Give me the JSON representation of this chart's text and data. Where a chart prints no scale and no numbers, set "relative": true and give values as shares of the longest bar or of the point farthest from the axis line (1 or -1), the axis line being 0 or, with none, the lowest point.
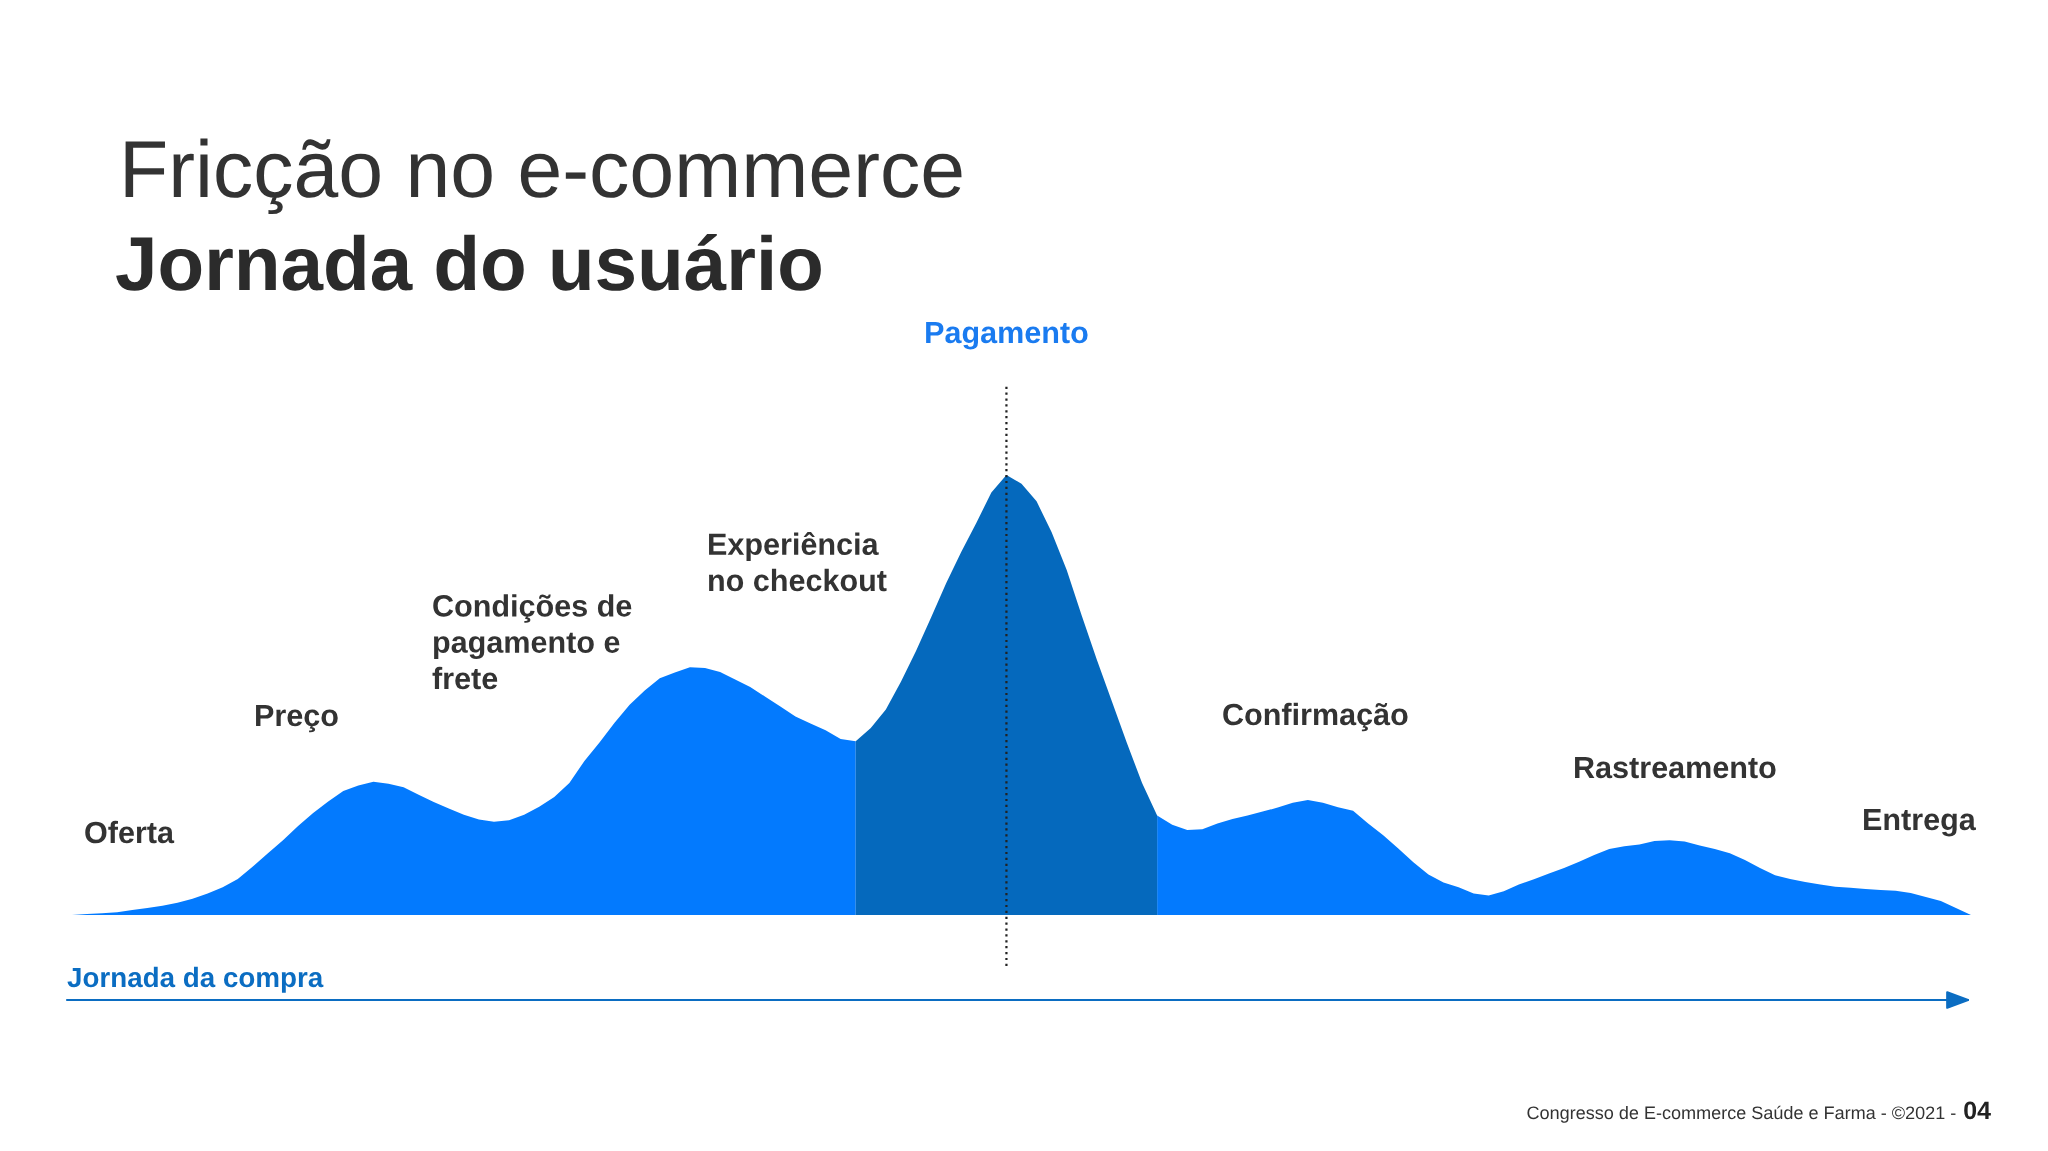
{
  "chart_data": {
    "type": "area",
    "title": "Fricção no e-commerce",
    "subtitle": "Jornada do usuário",
    "xlabel": "Jornada da compra",
    "relative": true,
    "categories": [
      null,
      null,
      null,
      null,
      null,
      null,
      null,
      null,
      null,
      null,
      null,
      null,
      null,
      null,
      null,
      null,
      null,
      null,
      null,
      null,
      null,
      null,
      null,
      null,
      null,
      null,
      null,
      null,
      null,
      null,
      null,
      null,
      null,
      null,
      null,
      null,
      null,
      null,
      null,
      null,
      null,
      null,
      null,
      null,
      null,
      null,
      null,
      null,
      null,
      null,
      null,
      null,
      null,
      null,
      null,
      null,
      null,
      null,
      null,
      null,
      null,
      null,
      null,
      null,
      null,
      null,
      null,
      null,
      null,
      null,
      null,
      null,
      null,
      null,
      null,
      null,
      null,
      null,
      null,
      null,
      null,
      null,
      null,
      null,
      null,
      null,
      null,
      null,
      null,
      null,
      null,
      null,
      null,
      null,
      null,
      null,
      null,
      null,
      null,
      null,
      null,
      null,
      null,
      null,
      null,
      null,
      null,
      null,
      null,
      null,
      null,
      null,
      null,
      null,
      null,
      null,
      null,
      null,
      null,
      null,
      null,
      null,
      null,
      null,
      null,
      null,
      null
    ],
    "series": [
      {
        "color": "#037afe",
        "values": [
          0,
          0.002,
          0.004,
          0.006,
          0.011,
          0.016,
          0.021,
          0.028,
          0.037,
          0.049,
          0.063,
          0.082,
          0.11,
          0.14,
          0.17,
          0.202,
          0.232,
          0.258,
          0.282,
          0.294,
          0.303,
          0.298,
          0.29,
          0.273,
          0.257,
          0.242,
          0.228,
          0.217,
          0.212,
          0.215,
          0.228,
          0.246,
          0.268,
          0.3,
          0.35,
          0.392,
          0.437,
          0.478,
          0.51,
          0.538,
          0.551,
          0.563,
          0.561,
          0.552,
          0.535,
          0.518,
          0.496,
          0.474,
          0.451,
          0.435,
          0.42,
          0.4,
          0.395,
          null,
          null,
          null,
          null,
          null,
          null,
          null,
          null,
          null,
          null,
          null,
          null,
          null,
          null,
          null,
          null,
          null,
          null,
          null,
          0.226,
          0.205,
          0.193,
          0.195,
          0.208,
          0.218,
          0.226,
          0.235,
          0.244,
          0.255,
          0.261,
          0.255,
          0.245,
          0.237,
          0.208,
          0.181,
          0.151,
          0.12,
          0.092,
          0.074,
          0.063,
          0.049,
          0.044,
          0.054,
          0.069,
          0.081,
          0.094,
          0.107,
          0.121,
          0.136,
          0.15,
          0.156,
          0.16,
          0.168,
          0.17,
          0.167,
          0.158,
          0.15,
          0.14,
          0.125,
          0.107,
          0.09,
          0.082,
          0.075,
          0.069,
          0.064,
          0.062,
          0.059,
          0.057,
          0.055,
          0.05,
          0.041,
          0.032,
          0.016,
          0
        ]
      },
      {
        "color": "#0569bd",
        "values": [
          null,
          null,
          null,
          null,
          null,
          null,
          null,
          null,
          null,
          null,
          null,
          null,
          null,
          null,
          null,
          null,
          null,
          null,
          null,
          null,
          null,
          null,
          null,
          null,
          null,
          null,
          null,
          null,
          null,
          null,
          null,
          null,
          null,
          null,
          null,
          null,
          null,
          null,
          null,
          null,
          null,
          null,
          null,
          null,
          null,
          null,
          null,
          null,
          null,
          null,
          null,
          null,
          0.395,
          0.425,
          0.467,
          0.53,
          0.6,
          0.676,
          0.754,
          0.825,
          0.891,
          0.96,
          1.0,
          0.98,
          0.94,
          0.87,
          0.784,
          0.68,
          0.58,
          0.485,
          0.39,
          0.3,
          0.226,
          null,
          null,
          null,
          null,
          null,
          null,
          null,
          null,
          null,
          null,
          null,
          null,
          null,
          null,
          null,
          null,
          null,
          null,
          null,
          null,
          null,
          null,
          null,
          null,
          null,
          null,
          null,
          null,
          null,
          null,
          null,
          null,
          null,
          null,
          null,
          null,
          null,
          null,
          null,
          null,
          null,
          null,
          null,
          null,
          null,
          null,
          null,
          null,
          null,
          null,
          null,
          null,
          null,
          null
        ]
      }
    ],
    "annotations": [
      "Pagamento",
      "Oferta",
      "Preço",
      "Condições de\npagamento e\nfrete",
      "Experiência\nno checkout",
      "Confirmação",
      "Rastreamento",
      "Entrega",
      "Congresso de E-commerce Saúde e Farma - ©2021 -",
      "04"
    ]
  }
}
